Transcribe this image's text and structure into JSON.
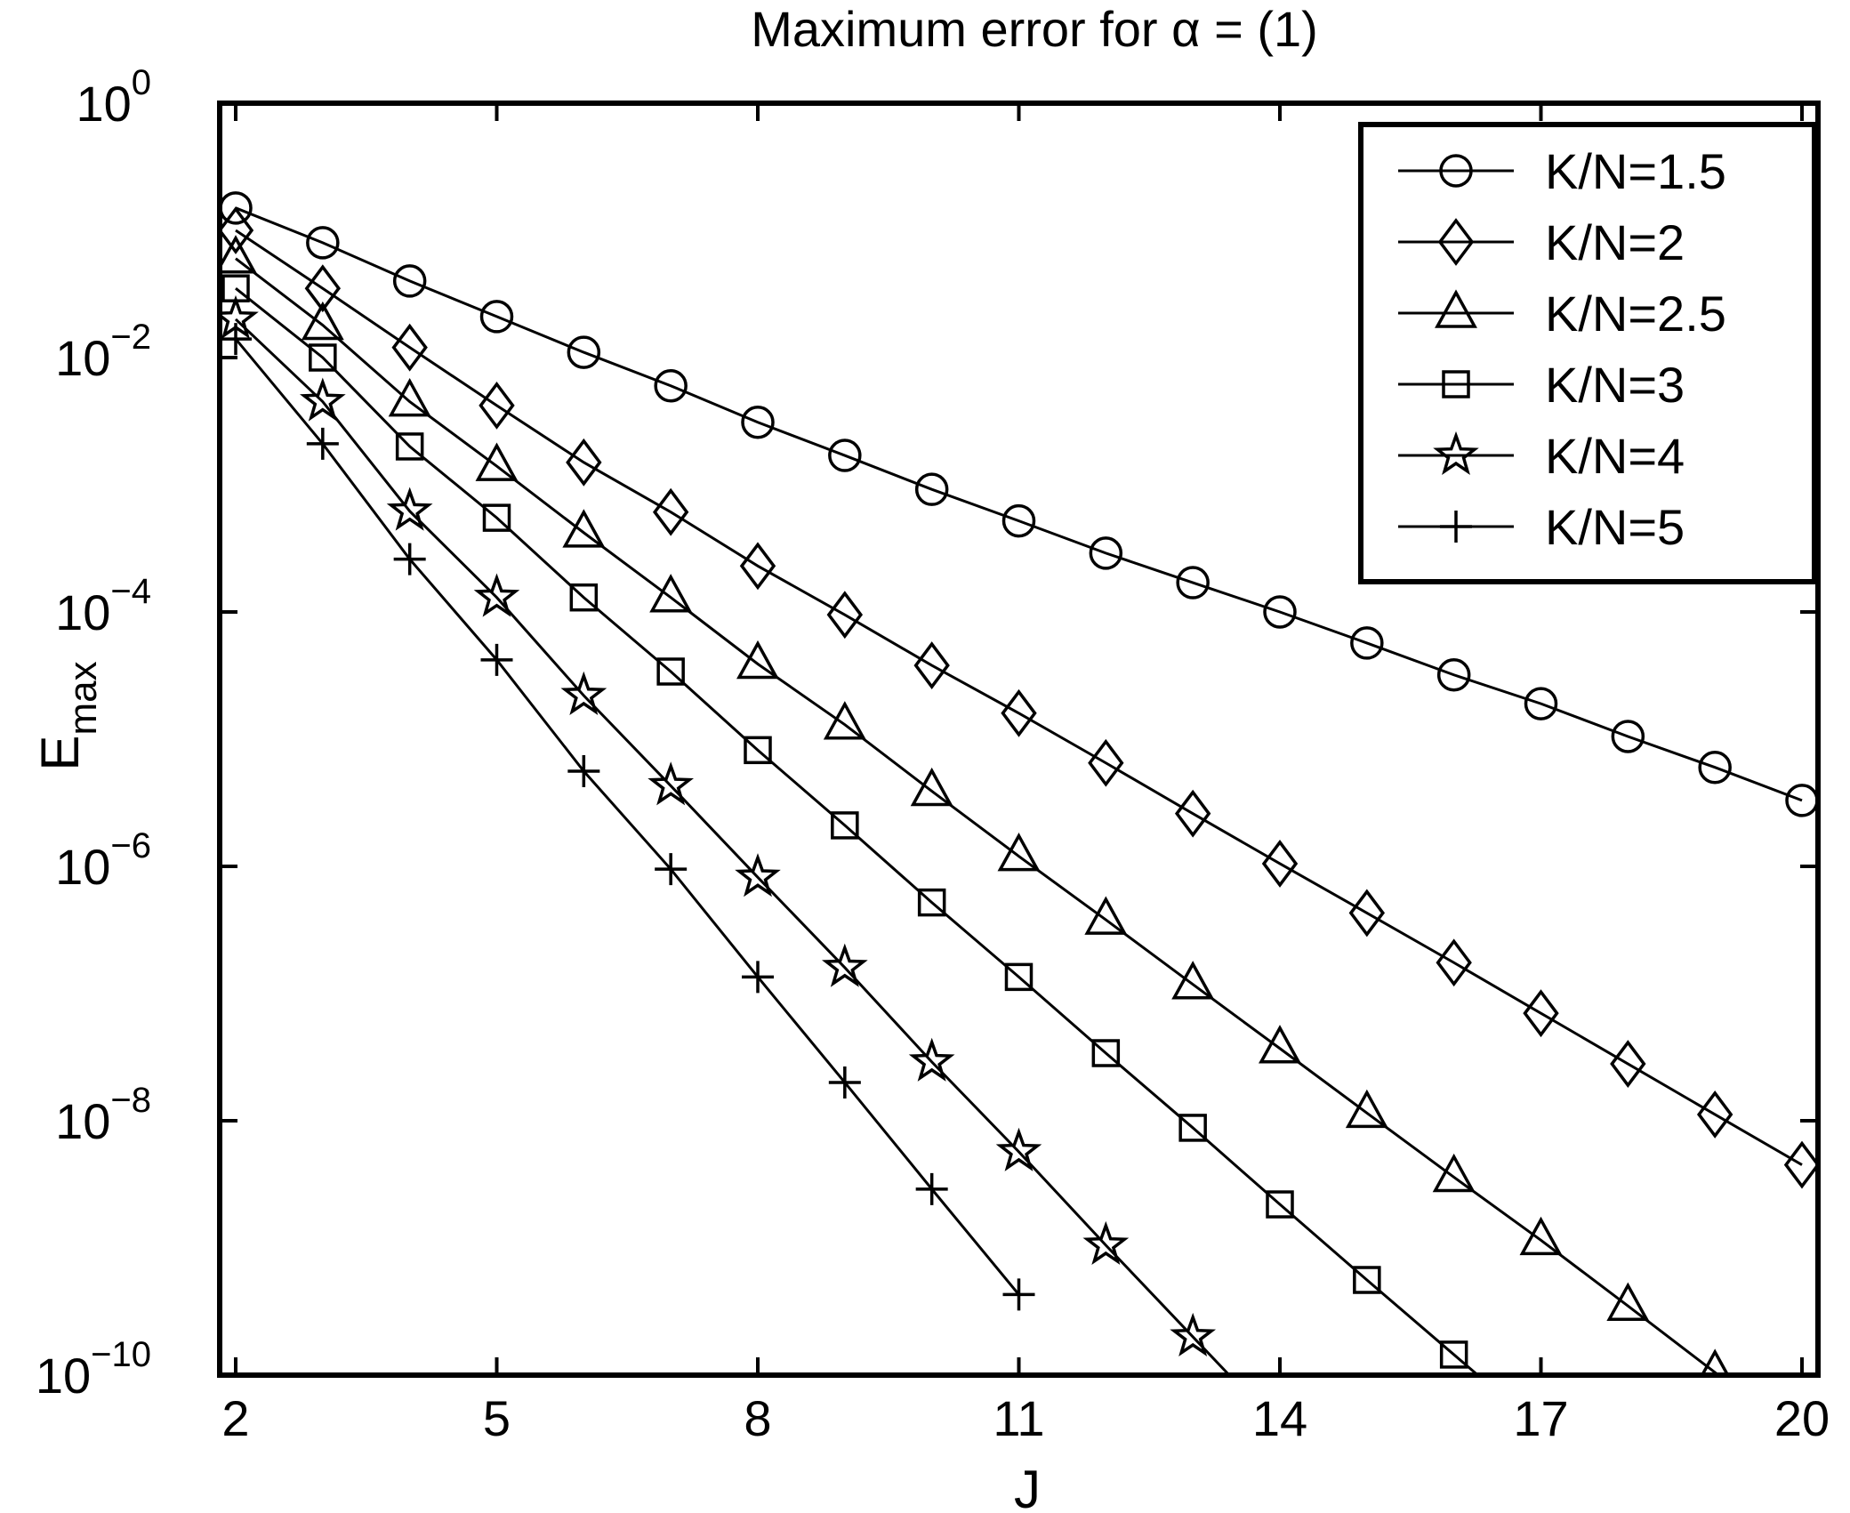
{
  "chart_data": {
    "type": "line",
    "title": "Maximum error for α = (1)",
    "xlabel": "J",
    "ylabel_main": "E",
    "ylabel_sub": "max",
    "yscale": "log",
    "xlim": [
      2,
      20
    ],
    "ylim_exponents": [
      -10,
      0
    ],
    "xticks": [
      2,
      5,
      8,
      11,
      14,
      17,
      20
    ],
    "yticks": [
      {
        "base": "10",
        "exp": "0"
      },
      {
        "base": "10",
        "exp": "−2"
      },
      {
        "base": "10",
        "exp": "−4"
      },
      {
        "base": "10",
        "exp": "−6"
      },
      {
        "base": "10",
        "exp": "−8"
      },
      {
        "base": "10",
        "exp": "−10"
      }
    ],
    "grid": false,
    "legend_position": "top-right",
    "series": [
      {
        "name": "K/N=1.5",
        "marker": "circle",
        "x": [
          2,
          3,
          4,
          5,
          6,
          7,
          8,
          9,
          10,
          11,
          12,
          13,
          14,
          15,
          16,
          17,
          18,
          19,
          20
        ],
        "y": [
          0.15,
          0.08,
          0.04,
          0.021,
          0.011,
          0.006,
          0.0031,
          0.0017,
          0.00092,
          0.00052,
          0.00029,
          0.00017,
          0.0001,
          5.7e-05,
          3.2e-05,
          1.9e-05,
          1.05e-05,
          6e-06,
          3.3e-06
        ]
      },
      {
        "name": "K/N=2",
        "marker": "diamond",
        "x": [
          2,
          3,
          4,
          5,
          6,
          7,
          8,
          9,
          10,
          11,
          12,
          13,
          14,
          15,
          16,
          17,
          18,
          19,
          20
        ],
        "y": [
          0.1,
          0.035,
          0.012,
          0.0042,
          0.0015,
          0.00061,
          0.00023,
          9.5e-05,
          3.8e-05,
          1.6e-05,
          6.5e-06,
          2.6e-06,
          1.05e-06,
          4.3e-07,
          1.75e-07,
          7e-08,
          2.8e-08,
          1.12e-08,
          4.5e-09
        ]
      },
      {
        "name": "K/N=2.5",
        "marker": "triangle",
        "x": [
          2,
          3,
          4,
          5,
          6,
          7,
          8,
          9,
          10,
          11,
          12,
          13,
          14,
          15,
          16,
          17,
          18,
          19
        ],
        "y": [
          0.06,
          0.018,
          0.0045,
          0.0014,
          0.00042,
          0.00013,
          3.9e-05,
          1.3e-05,
          3.9e-06,
          1.2e-06,
          3.8e-07,
          1.18e-07,
          3.7e-08,
          1.15e-08,
          3.6e-09,
          1.15e-09,
          3.5e-10,
          1.05e-10
        ]
      },
      {
        "name": "K/N=3",
        "marker": "square",
        "x": [
          2,
          3,
          4,
          5,
          6,
          7,
          8,
          9,
          10,
          11,
          12,
          13,
          14,
          15,
          16
        ],
        "y": [
          0.035,
          0.01,
          0.002,
          0.00055,
          0.00013,
          3.4e-05,
          8.2e-06,
          2.1e-06,
          5.2e-07,
          1.35e-07,
          3.4e-08,
          8.8e-09,
          2.2e-09,
          5.6e-10,
          1.45e-10
        ]
      },
      {
        "name": "K/N=4",
        "marker": "star",
        "x": [
          2,
          3,
          4,
          5,
          6,
          7,
          8,
          9,
          10,
          11,
          12,
          13
        ],
        "y": [
          0.02,
          0.0045,
          0.00062,
          0.00013,
          2.2e-05,
          4.3e-06,
          8.2e-07,
          1.6e-07,
          2.9e-08,
          5.7e-09,
          1.05e-09,
          2e-10
        ]
      },
      {
        "name": "K/N=5",
        "marker": "plus",
        "x": [
          2,
          3,
          4,
          5,
          6,
          7,
          8,
          9,
          10,
          11
        ],
        "y": [
          0.014,
          0.0021,
          0.00026,
          4.2e-05,
          5.6e-06,
          9.5e-07,
          1.35e-07,
          2e-08,
          2.9e-09,
          4.3e-10
        ]
      }
    ]
  }
}
